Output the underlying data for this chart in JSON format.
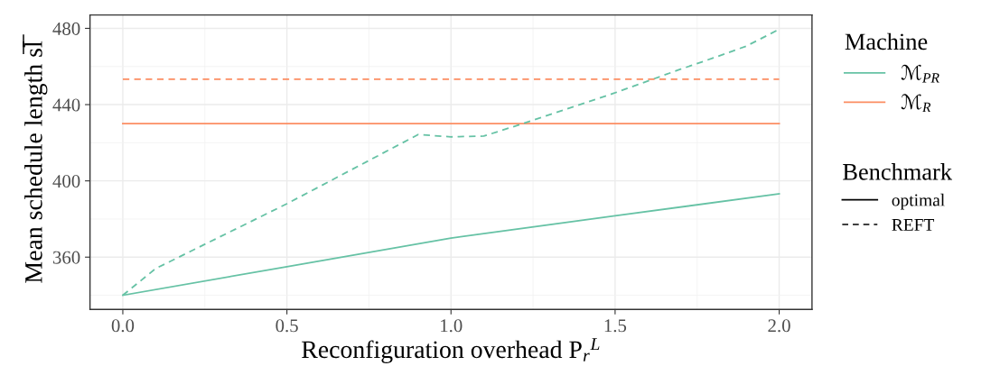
{
  "chart_data": {
    "type": "line",
    "xlabel": "Reconfiguration overhead P$_{r}$$^{L}$",
    "ylabel": "Mean schedule length s̅l̅",
    "xlim": [
      -0.1,
      2.1
    ],
    "xticks": [
      {
        "value": 0,
        "label": "0.0"
      },
      0.5,
      {
        "value": 1,
        "label": "1.0"
      },
      1.5,
      {
        "value": 2,
        "label": "2.0"
      }
    ],
    "ylim": [
      332.6,
      487
    ],
    "yticks": [
      360,
      400,
      440,
      480
    ],
    "grid": true,
    "legend": "right",
    "legend_title": [
      "Machine",
      "Benchmark"
    ],
    "annotations": [
      "optimal",
      "REFT"
    ],
    "series": [
      {
        "name": "ℳ$_{PR}$",
        "color": "#66c2a5",
        "line_style": "solid",
        "x": [
          0,
          0.5,
          1,
          1.5,
          2
        ],
        "values": [
          340,
          355,
          370,
          381.7,
          393.2
        ]
      },
      {
        "name": "ℳ$_{R}$",
        "color": "#fc8d62",
        "line_style": "solid",
        "x": [
          0,
          2
        ],
        "values": [
          430,
          430
        ]
      },
      {
        "color": "#66c2a5",
        "line_style": "dashed",
        "x": [
          0,
          0.1,
          0.5,
          0.9,
          1.0,
          1.1,
          1.2,
          1.5,
          1.7,
          1.8,
          1.9,
          2.0
        ],
        "values": [
          340,
          354,
          388,
          424.3,
          423.1,
          423.5,
          429,
          446.2,
          458.6,
          464.5,
          470.7,
          479.5
        ]
      },
      {
        "color": "#fc8d62",
        "line_style": "dashed",
        "x": [
          0,
          2
        ],
        "values": [
          453.3,
          453.3
        ]
      }
    ]
  }
}
